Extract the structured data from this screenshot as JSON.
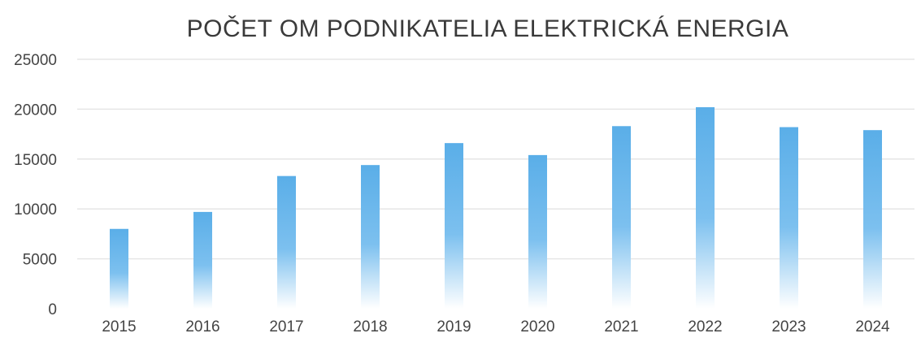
{
  "chart_data": {
    "type": "bar",
    "title": "POČET OM PODNIKATELIA ELEKTRICKÁ ENERGIA",
    "xlabel": "",
    "ylabel": "",
    "categories": [
      "2015",
      "2016",
      "2017",
      "2018",
      "2019",
      "2020",
      "2021",
      "2022",
      "2023",
      "2024"
    ],
    "series": [
      {
        "values": [
          8000,
          9700,
          13300,
          14400,
          16600,
          15400,
          18300,
          20200,
          18200,
          17900
        ]
      }
    ],
    "ylim": [
      0,
      25000
    ],
    "yticks": [
      "0",
      "5000",
      "10000",
      "15000",
      "20000",
      "25000"
    ],
    "grid": true,
    "legend": "none",
    "bar_color": "#5aaee8",
    "bar_fade_color": "#ffffff"
  }
}
